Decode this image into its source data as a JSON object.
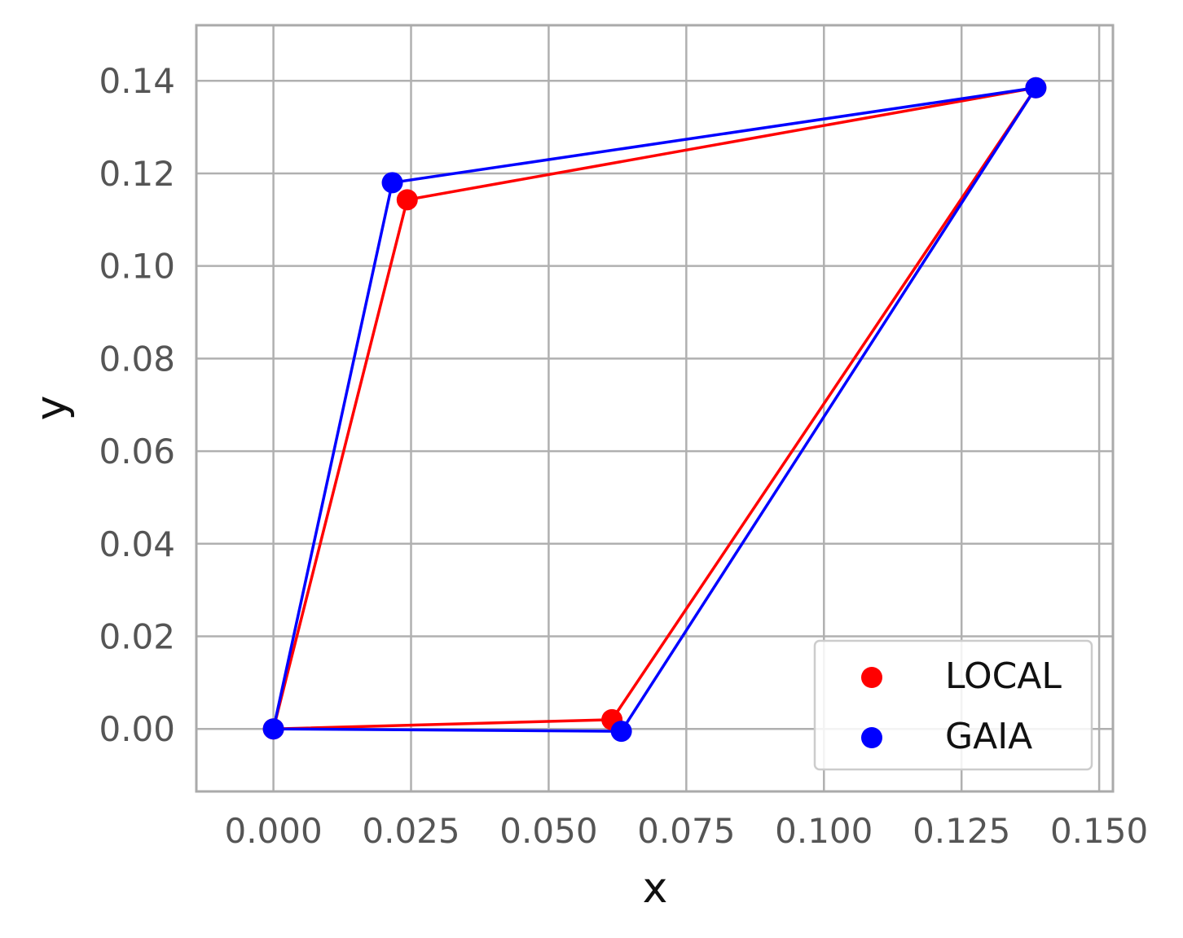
{
  "chart_data": {
    "type": "scatter",
    "title": "",
    "xlabel": "x",
    "ylabel": "y",
    "xlim": [
      -0.014,
      0.1525
    ],
    "ylim": [
      -0.0135,
      0.152
    ],
    "xticks": [
      0.0,
      0.025,
      0.05,
      0.075,
      0.1,
      0.125,
      0.15
    ],
    "xtick_labels": [
      "0.000",
      "0.025",
      "0.050",
      "0.075",
      "0.100",
      "0.125",
      "0.150"
    ],
    "yticks": [
      0.0,
      0.02,
      0.04,
      0.06,
      0.08,
      0.1,
      0.12,
      0.14
    ],
    "ytick_labels": [
      "0.00",
      "0.02",
      "0.04",
      "0.06",
      "0.08",
      "0.10",
      "0.12",
      "0.14"
    ],
    "grid": true,
    "legend_position": "lower-right",
    "series": [
      {
        "name": "LOCAL",
        "color": "#ff0000",
        "closed": true,
        "x": [
          0.0,
          0.0615,
          0.1385,
          0.0243
        ],
        "y": [
          0.0,
          0.002,
          0.1385,
          0.1143
        ]
      },
      {
        "name": "GAIA",
        "color": "#0000ff",
        "closed": true,
        "x": [
          0.0,
          0.0632,
          0.1385,
          0.0216
        ],
        "y": [
          0.0,
          -0.0005,
          0.1385,
          0.118
        ]
      }
    ]
  }
}
